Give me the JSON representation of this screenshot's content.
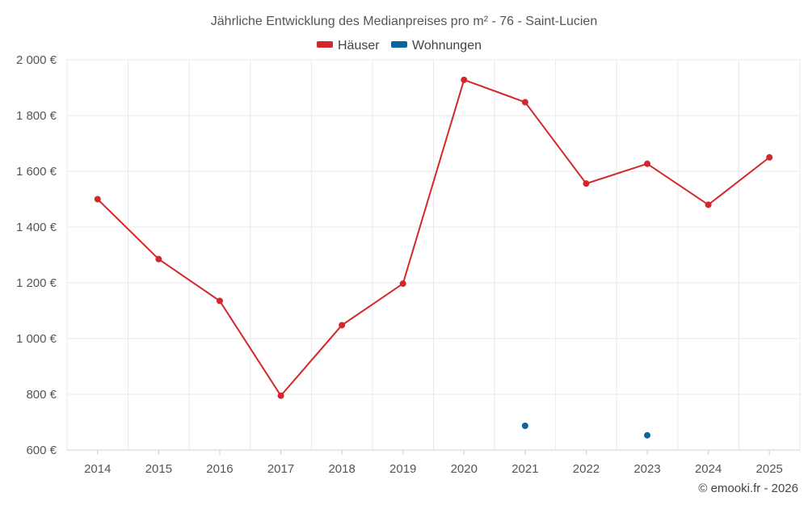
{
  "chart_data": {
    "type": "line",
    "title": "Jährliche Entwicklung des Medianpreises pro m² - 76 - Saint-Lucien",
    "categories": [
      "2014",
      "2015",
      "2016",
      "2017",
      "2018",
      "2019",
      "2020",
      "2021",
      "2022",
      "2023",
      "2024",
      "2025"
    ],
    "series": [
      {
        "name": "Häuser",
        "color": "#d3272b",
        "values": [
          1500,
          1285,
          1135,
          795,
          1048,
          1197,
          1928,
          1848,
          1556,
          1627,
          1480,
          1650
        ]
      },
      {
        "name": "Wohnungen",
        "color": "#0a64a0",
        "values": [
          null,
          null,
          null,
          null,
          null,
          null,
          null,
          687,
          null,
          653,
          null,
          null
        ]
      }
    ],
    "ylim": [
      600,
      2000
    ],
    "yticks": [
      600,
      800,
      1000,
      1200,
      1400,
      1600,
      1800,
      2000
    ],
    "ytick_labels": [
      "600 €",
      "800 €",
      "1 000 €",
      "1 200 €",
      "1 400 €",
      "1 600 €",
      "1 800 €",
      "2 000 €"
    ],
    "xlabel": "",
    "ylabel": "",
    "grid": true,
    "legend_position": "top-center"
  },
  "credit": "© emooki.fr - 2026"
}
